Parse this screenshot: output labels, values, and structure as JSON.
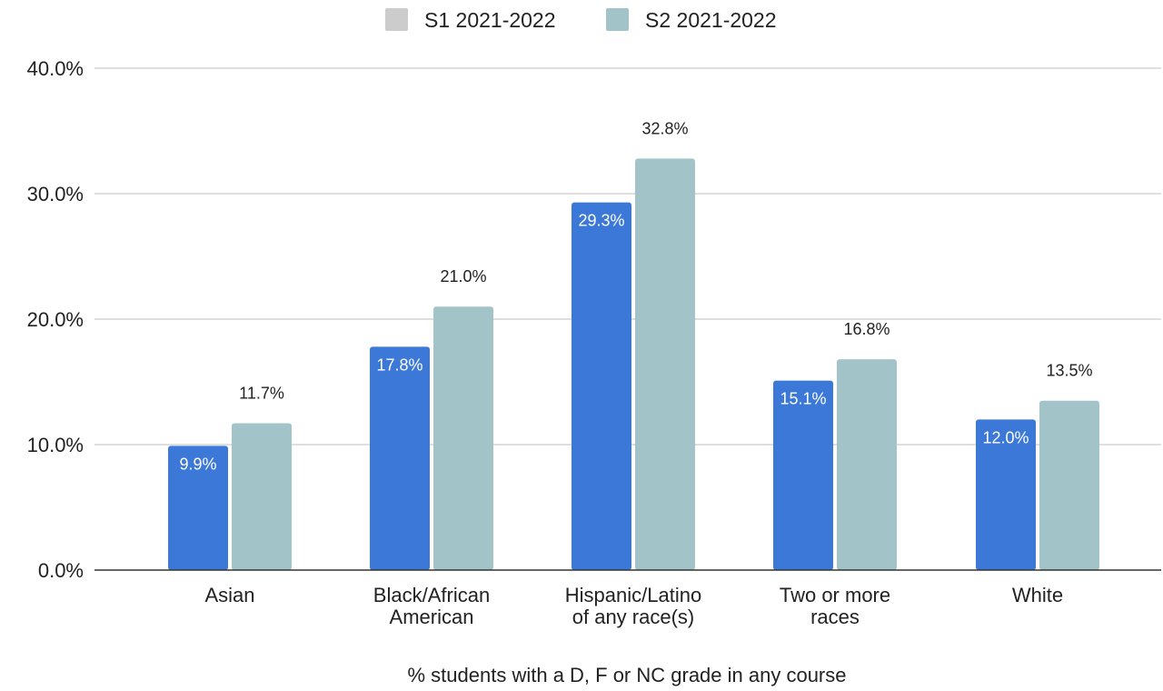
{
  "chart_data": {
    "type": "bar",
    "title": "",
    "xlabel": "% students with a D, F or NC grade in any course",
    "ylabel": "",
    "ylim": [
      0,
      40
    ],
    "yticks": [
      0,
      10,
      20,
      30,
      40
    ],
    "ytick_labels": [
      "0.0%",
      "10.0%",
      "20.0%",
      "30.0%",
      "40.0%"
    ],
    "categories": [
      [
        "Asian"
      ],
      [
        "Black/African",
        "American"
      ],
      [
        "Hispanic/Latino",
        "of any race(s)"
      ],
      [
        "Two or more",
        "races"
      ],
      [
        "White"
      ]
    ],
    "series": [
      {
        "name": "S1 2021-2022",
        "bar_color": "#3c78d8",
        "legend_color": "#cccccc",
        "values": [
          9.9,
          17.8,
          29.3,
          15.1,
          12.0
        ],
        "labels": [
          "9.9%",
          "17.8%",
          "29.3%",
          "15.1%",
          "12.0%"
        ]
      },
      {
        "name": "S2 2021-2022",
        "bar_color": "#a2c4c9",
        "legend_color": "#a2c4c9",
        "values": [
          11.7,
          21.0,
          32.8,
          16.8,
          13.5
        ],
        "labels": [
          "11.7%",
          "21.0%",
          "32.8%",
          "16.8%",
          "13.5%"
        ]
      }
    ],
    "legend_position": "top",
    "grid": true,
    "colors": {
      "grid": "#cccccc",
      "axis": "#333333",
      "text": "#222222",
      "inside_label": "#ffffff"
    }
  }
}
